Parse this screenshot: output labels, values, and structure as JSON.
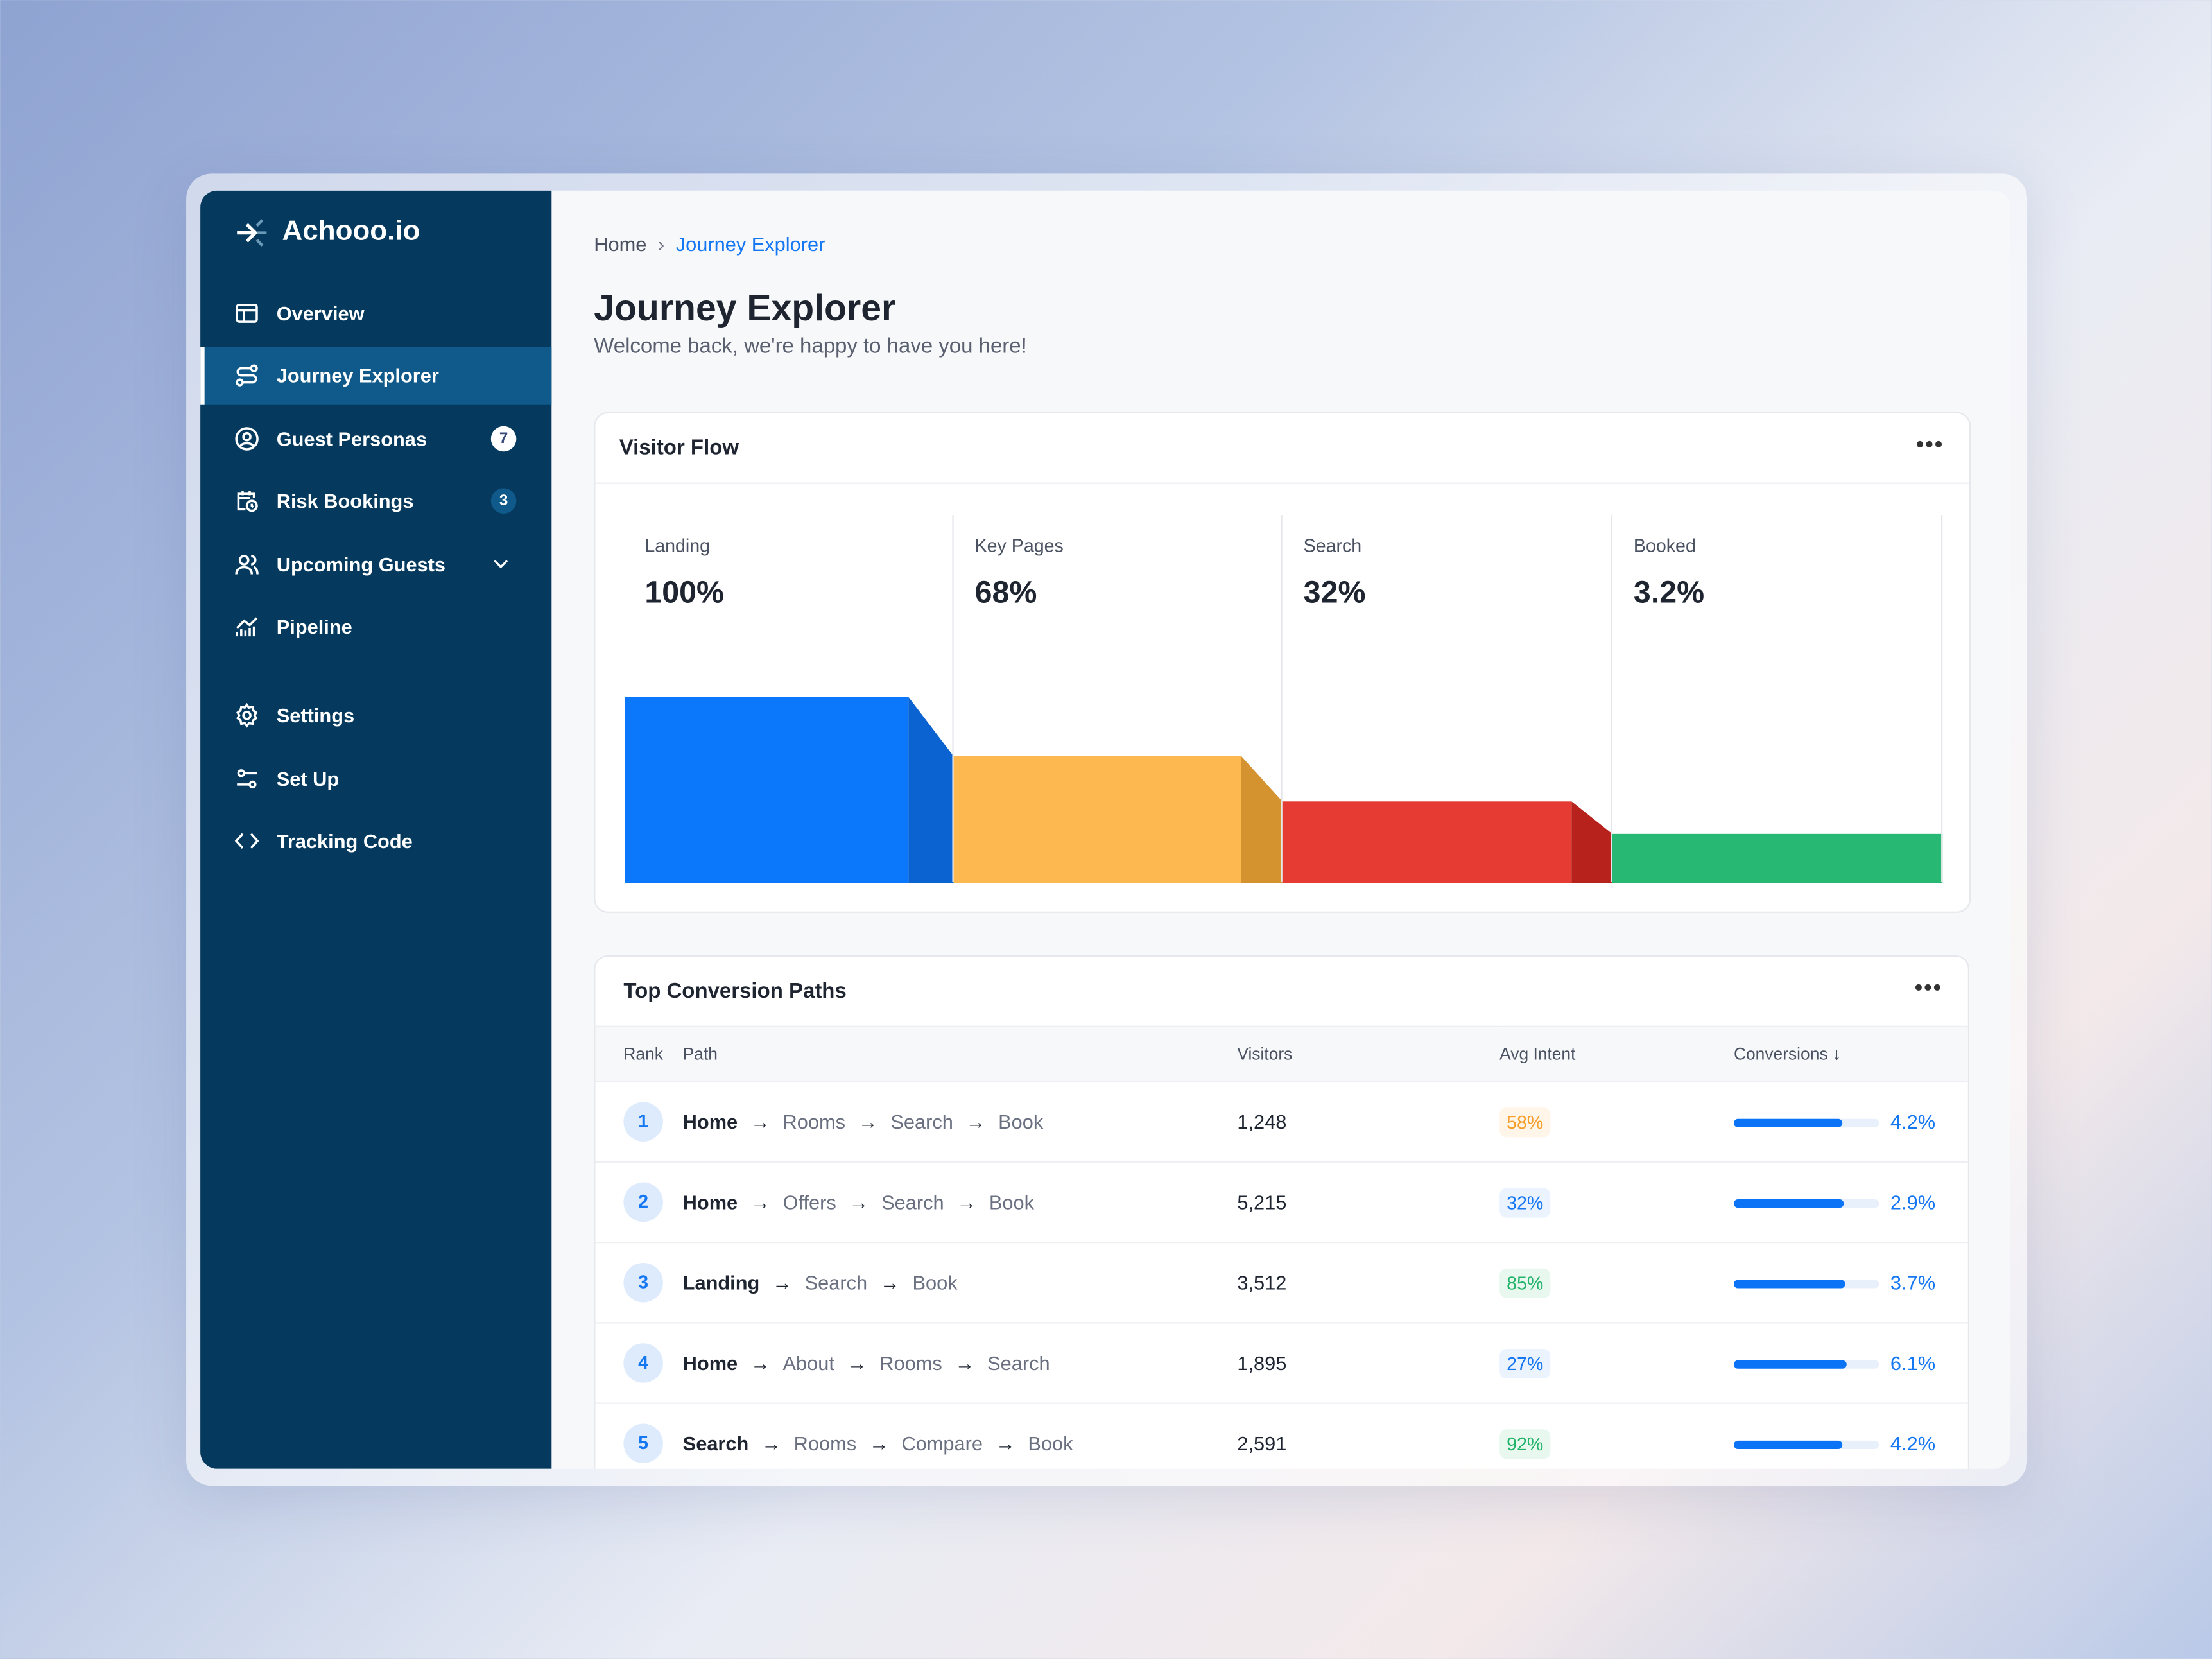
{
  "brand": {
    "name": "Achooo.io"
  },
  "sidebar": {
    "items": [
      {
        "label": "Overview",
        "icon": "layout-icon"
      },
      {
        "label": "Journey Explorer",
        "icon": "route-icon",
        "active": true
      },
      {
        "label": "Guest Personas",
        "icon": "user-circle-icon",
        "badge": "7"
      },
      {
        "label": "Risk Bookings",
        "icon": "calendar-clock-icon",
        "badge": "3"
      },
      {
        "label": "Upcoming Guests",
        "icon": "users-icon",
        "expandable": true
      },
      {
        "label": "Pipeline",
        "icon": "chart-icon"
      },
      {
        "label": "Settings",
        "icon": "gear-icon"
      },
      {
        "label": "Set Up",
        "icon": "sliders-icon"
      },
      {
        "label": "Tracking Code",
        "icon": "code-icon"
      }
    ]
  },
  "breadcrumb": {
    "home": "Home",
    "current": "Journey Explorer"
  },
  "header": {
    "title": "Journey Explorer",
    "subtitle": "Welcome back, we're happy to have you here!"
  },
  "visitor_flow": {
    "title": "Visitor Flow",
    "stages": [
      {
        "label": "Landing",
        "value": "100%",
        "pct": 100,
        "color": "#0b77fa",
        "shade": "#0b63d2"
      },
      {
        "label": "Key Pages",
        "value": "68%",
        "pct": 68,
        "color": "#fdb950",
        "shade": "#d4932f"
      },
      {
        "label": "Search",
        "value": "32%",
        "pct": 32,
        "color": "#e63b33",
        "shade": "#b8221c"
      },
      {
        "label": "Booked",
        "value": "3.2%",
        "pct": 3.2,
        "color": "#27b974"
      }
    ]
  },
  "paths": {
    "title": "Top Conversion Paths",
    "columns": [
      "Rank",
      "Path",
      "Visitors",
      "Avg Intent",
      "Conversions"
    ],
    "sort_icon": "arrow-down-icon",
    "rows": [
      {
        "rank": "1",
        "steps": [
          "Home",
          "Rooms",
          "Search",
          "Book"
        ],
        "visitors": "1,248",
        "intent": "58%",
        "intent_color": "#f59e2a",
        "intent_bg": "#fff5e8",
        "conversion": "4.2%",
        "bar": 75
      },
      {
        "rank": "2",
        "steps": [
          "Home",
          "Offers",
          "Search",
          "Book"
        ],
        "visitors": "5,215",
        "intent": "32%",
        "intent_color": "#1677f2",
        "intent_bg": "#ebf3fe",
        "conversion": "2.9%",
        "bar": 76
      },
      {
        "rank": "3",
        "steps": [
          "Landing",
          "Search",
          "Book"
        ],
        "visitors": "3,512",
        "intent": "85%",
        "intent_color": "#22b36a",
        "intent_bg": "#e8f8ef",
        "conversion": "3.7%",
        "bar": 77
      },
      {
        "rank": "4",
        "steps": [
          "Home",
          "About",
          "Rooms",
          "Search"
        ],
        "visitors": "1,895",
        "intent": "27%",
        "intent_color": "#1677f2",
        "intent_bg": "#ebf3fe",
        "conversion": "6.1%",
        "bar": 78
      },
      {
        "rank": "5",
        "steps": [
          "Search",
          "Rooms",
          "Compare",
          "Book"
        ],
        "visitors": "2,591",
        "intent": "92%",
        "intent_color": "#22b36a",
        "intent_bg": "#e8f8ef",
        "conversion": "4.2%",
        "bar": 75
      }
    ]
  }
}
